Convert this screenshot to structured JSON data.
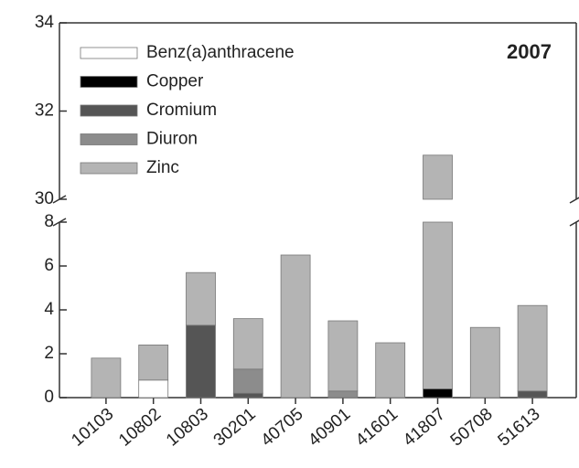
{
  "chart_data": {
    "type": "stacked_bar",
    "annotation": "2007",
    "categories": [
      "10103",
      "10802",
      "10803",
      "30201",
      "40705",
      "40901",
      "41601",
      "41807",
      "50708",
      "51613"
    ],
    "series": [
      {
        "name": "Benz(a)anthracene",
        "color": "#ffffff",
        "values": [
          0,
          0.8,
          0,
          0,
          0,
          0,
          0,
          0,
          0,
          0
        ]
      },
      {
        "name": "Copper",
        "color": "#000000",
        "values": [
          0,
          0,
          0,
          0,
          0,
          0,
          0,
          0.4,
          0,
          0
        ]
      },
      {
        "name": "Cromium",
        "color": "#555555",
        "values": [
          0,
          0,
          3.3,
          0.2,
          0,
          0,
          0,
          0,
          0,
          0.3
        ]
      },
      {
        "name": "Diuron",
        "color": "#8c8c8c",
        "values": [
          0,
          0,
          0,
          1.1,
          0,
          0.3,
          0,
          0,
          0,
          0
        ]
      },
      {
        "name": "Zinc",
        "color": "#b4b4b4",
        "values": [
          1.8,
          1.6,
          2.4,
          2.3,
          6.5,
          3.2,
          2.5,
          30.6,
          3.2,
          3.9
        ]
      }
    ],
    "ylim": [
      0,
      34
    ],
    "ybreak": [
      8,
      30
    ],
    "yticks": [
      0,
      2,
      4,
      6,
      8,
      30,
      32,
      34
    ],
    "legend": "upper left"
  }
}
